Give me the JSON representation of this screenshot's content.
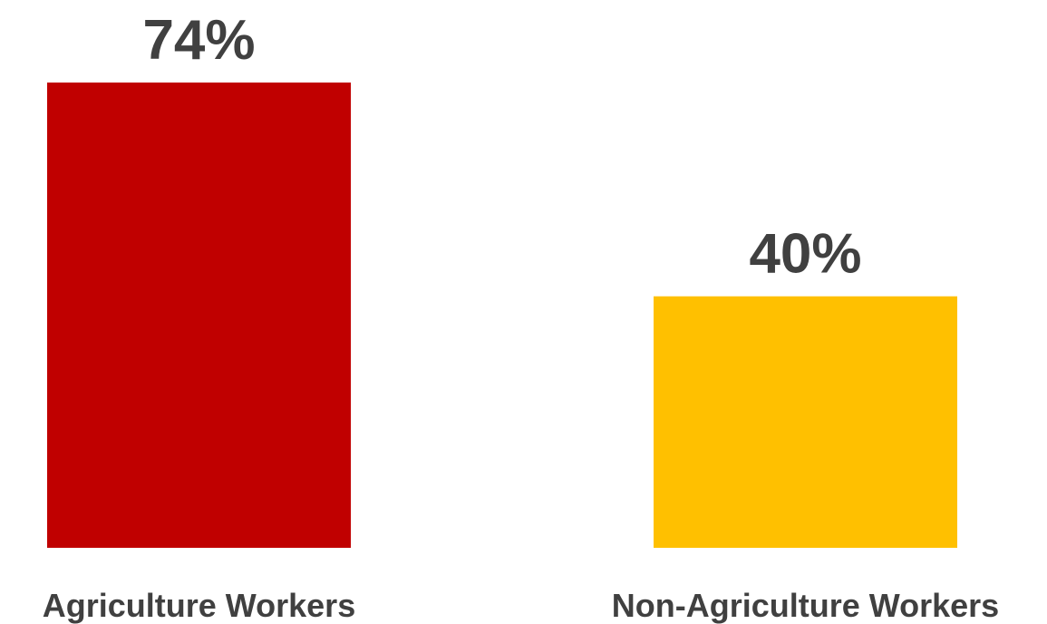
{
  "chart_data": {
    "type": "bar",
    "categories": [
      "Agriculture Workers",
      "Non-Agriculture Workers"
    ],
    "values": [
      74,
      40
    ],
    "value_labels": [
      "74%",
      "40%"
    ],
    "colors": [
      "#C00000",
      "#FFC000"
    ],
    "title": "",
    "xlabel": "",
    "ylabel": "",
    "ylim": [
      0,
      74
    ],
    "grid": false,
    "legend": "none"
  }
}
